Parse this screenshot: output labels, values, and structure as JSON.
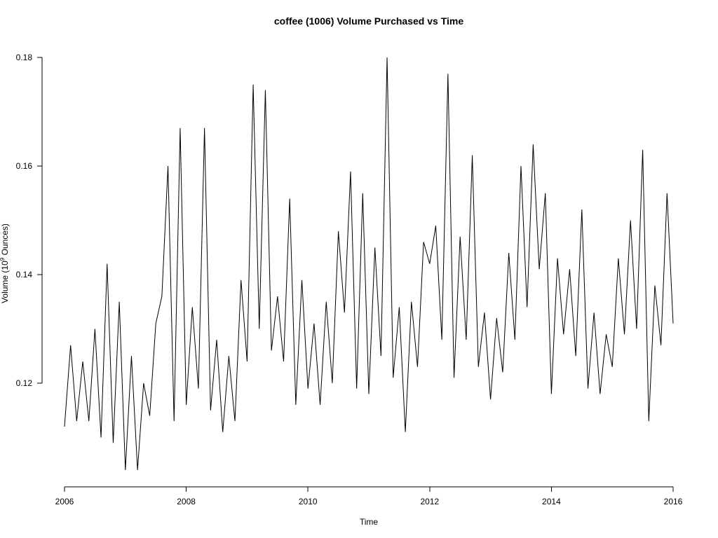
{
  "chart_data": {
    "type": "line",
    "title": "coffee (1006) Volume Purchased vs Time",
    "xlabel": "Time",
    "ylabel": {
      "prefix": "Volume (10",
      "superscript": "9",
      "suffix": " Ounces)"
    },
    "xlim": [
      2006.0,
      2016.0
    ],
    "ylim": [
      0.103,
      0.181
    ],
    "x_ticks": [
      2006,
      2008,
      2010,
      2012,
      2014,
      2016
    ],
    "x_tick_labels": [
      "2006",
      "2008",
      "2010",
      "2012",
      "2014",
      "2016"
    ],
    "y_ticks": [
      0.12,
      0.14,
      0.16,
      0.18
    ],
    "y_tick_labels": [
      "0.12",
      "0.14",
      "0.16",
      "0.18"
    ],
    "grid": false,
    "series": [
      {
        "x": [
          2006.0,
          2006.1,
          2006.2,
          2006.3,
          2006.4,
          2006.5,
          2006.6,
          2006.7,
          2006.8,
          2006.9,
          2007.0,
          2007.1,
          2007.2,
          2007.3,
          2007.4,
          2007.5,
          2007.6,
          2007.7,
          2007.8,
          2007.9,
          2008.0,
          2008.1,
          2008.2,
          2008.3,
          2008.4,
          2008.5,
          2008.6,
          2008.7,
          2008.8,
          2008.9,
          2009.0,
          2009.1,
          2009.2,
          2009.3,
          2009.4,
          2009.5,
          2009.6,
          2009.7,
          2009.8,
          2009.9,
          2010.0,
          2010.1,
          2010.2,
          2010.3,
          2010.4,
          2010.5,
          2010.6,
          2010.7,
          2010.8,
          2010.9,
          2011.0,
          2011.1,
          2011.2,
          2011.3,
          2011.4,
          2011.5,
          2011.6,
          2011.7,
          2011.8,
          2011.9,
          2012.0,
          2012.1,
          2012.2,
          2012.3,
          2012.4,
          2012.5,
          2012.6,
          2012.7,
          2012.8,
          2012.9,
          2013.0,
          2013.1,
          2013.2,
          2013.3,
          2013.4,
          2013.5,
          2013.6,
          2013.7,
          2013.8,
          2013.9,
          2014.0,
          2014.1,
          2014.2,
          2014.3,
          2014.4,
          2014.5,
          2014.6,
          2014.7,
          2014.8,
          2014.9,
          2015.0,
          2015.1,
          2015.2,
          2015.3,
          2015.4,
          2015.5,
          2015.6,
          2015.7,
          2015.8,
          2015.9,
          2016.0
        ],
        "values": [
          0.112,
          0.127,
          0.113,
          0.124,
          0.113,
          0.13,
          0.11,
          0.142,
          0.109,
          0.135,
          0.104,
          0.125,
          0.104,
          0.12,
          0.114,
          0.131,
          0.136,
          0.16,
          0.113,
          0.167,
          0.116,
          0.134,
          0.119,
          0.167,
          0.115,
          0.128,
          0.111,
          0.125,
          0.113,
          0.139,
          0.124,
          0.175,
          0.13,
          0.174,
          0.126,
          0.136,
          0.124,
          0.154,
          0.116,
          0.139,
          0.119,
          0.131,
          0.116,
          0.135,
          0.12,
          0.148,
          0.133,
          0.159,
          0.119,
          0.155,
          0.118,
          0.145,
          0.125,
          0.18,
          0.121,
          0.134,
          0.111,
          0.135,
          0.123,
          0.146,
          0.142,
          0.149,
          0.128,
          0.177,
          0.121,
          0.147,
          0.128,
          0.162,
          0.123,
          0.133,
          0.117,
          0.132,
          0.122,
          0.144,
          0.128,
          0.16,
          0.134,
          0.164,
          0.141,
          0.155,
          0.118,
          0.143,
          0.129,
          0.141,
          0.125,
          0.152,
          0.119,
          0.133,
          0.118,
          0.129,
          0.123,
          0.143,
          0.129,
          0.15,
          0.13,
          0.163,
          0.113,
          0.138,
          0.127,
          0.155,
          0.131
        ]
      }
    ]
  }
}
